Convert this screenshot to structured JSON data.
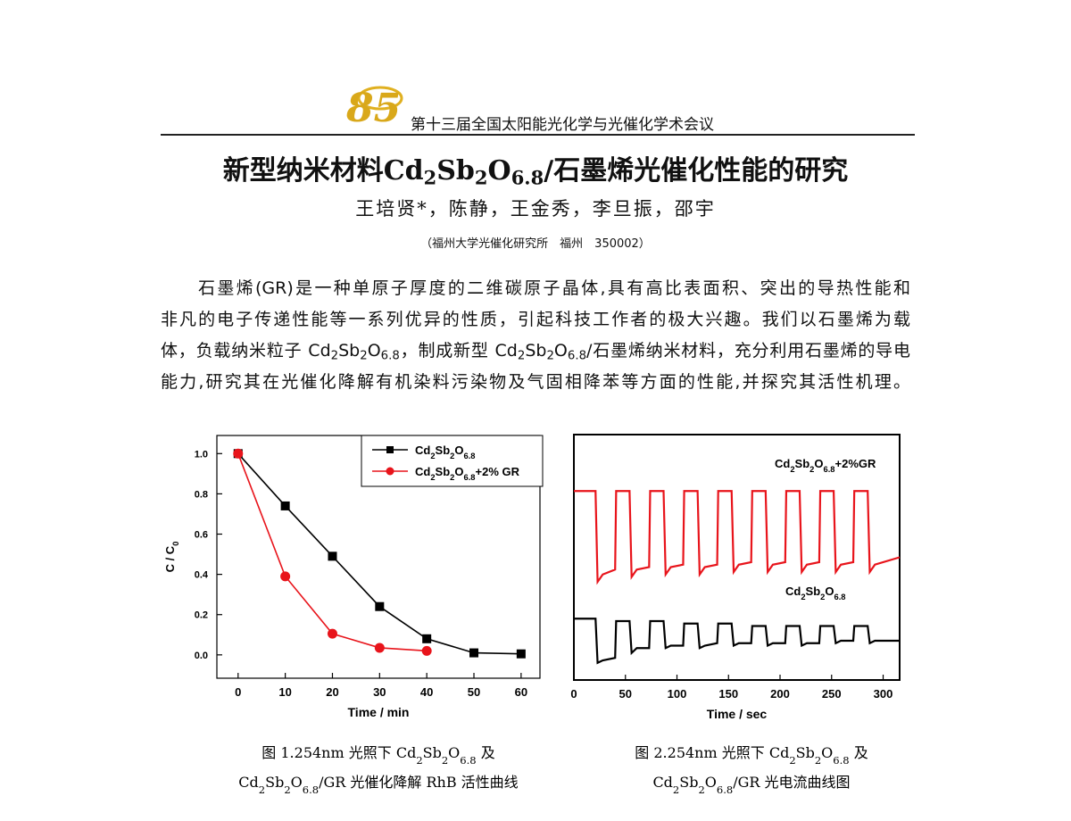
{
  "header": {
    "logo": "85",
    "conference": "第十三届全国太阳能光化学与光催化学术会议"
  },
  "title": "新型纳米材料Cd2Sb2O6.8/石墨烯光催化性能的研究",
  "authors": "王培贤*，陈静，王金秀，李旦振，邵宇",
  "affiliation": "（福州大学光催化研究所　福州　350002）",
  "abstract": {
    "lines": [
      "石墨烯(GR)是一种单原子厚度的二维碳原子晶体,具有高比表面积、突出的导热性能和",
      "非凡的电子传递性能等一系列优异的性质，引起科技工作者的极大兴趣。我们以石墨烯为载",
      "体，负载纳米粒子 Cd2Sb2O6.8，制成新型 Cd2Sb2O6.8/石墨烯纳米材料，充分利用石墨烯的导电",
      "能力,研究其在光催化降解有机染料污染物及气固相降苯等方面的性能,并探究其活性机理。"
    ]
  },
  "chart_data": [
    {
      "type": "line",
      "x_label": "Time / min",
      "y_label": "C / C0",
      "xlim": [
        -4.5,
        64
      ],
      "xticks": [
        0,
        10,
        20,
        30,
        40,
        50,
        60
      ],
      "ylim": [
        -0.116,
        1.09
      ],
      "yticks": [
        {
          "value": 0,
          "label": "0.0"
        },
        0.2,
        0.4,
        0.6,
        0.8,
        {
          "value": 1,
          "label": "1.0"
        }
      ],
      "legend": "upper right",
      "series": [
        {
          "name": "Cd2Sb2O6.8",
          "color": "#000000",
          "marker": "square",
          "x": [
            0,
            10,
            20,
            30,
            40,
            50,
            60
          ],
          "values": [
            1.0,
            0.74,
            0.49,
            0.24,
            0.08,
            0.01,
            0.005
          ]
        },
        {
          "name": "Cd2Sb2O6.8+2% GR",
          "color": "#e8141b",
          "marker": "circle",
          "x": [
            0,
            10,
            20,
            30,
            40
          ],
          "values": [
            1.0,
            0.39,
            0.105,
            0.035,
            0.02
          ]
        }
      ],
      "caption": [
        "图 1.254nm 光照下 Cd2Sb2O6.8 及",
        "Cd2Sb2O6.8/GR 光催化降解 RhB 活性曲线"
      ]
    },
    {
      "type": "line",
      "x_label": "Time / sec",
      "xlim": [
        0,
        316
      ],
      "xticks": [
        0,
        50,
        100,
        150,
        200,
        250,
        300
      ],
      "ylim": [
        0,
        1
      ],
      "series": [
        {
          "name": "Cd2Sb2O6.8+2%GR",
          "color": "#e8141b",
          "x": [
            0,
            21,
            23,
            28,
            40,
            41,
            54,
            56,
            61,
            73,
            74,
            87,
            89,
            94,
            106,
            107,
            120,
            122,
            127,
            139,
            140,
            153,
            155,
            160,
            172,
            173,
            186,
            188,
            193,
            205,
            206,
            219,
            221,
            226,
            238,
            239,
            252,
            254,
            259,
            271,
            272,
            285,
            287,
            292,
            316
          ],
          "values": [
            0.77,
            0.77,
            0.4,
            0.43,
            0.45,
            0.77,
            0.77,
            0.42,
            0.45,
            0.46,
            0.77,
            0.77,
            0.43,
            0.46,
            0.47,
            0.77,
            0.77,
            0.43,
            0.46,
            0.47,
            0.77,
            0.77,
            0.44,
            0.47,
            0.48,
            0.77,
            0.77,
            0.44,
            0.47,
            0.48,
            0.77,
            0.77,
            0.44,
            0.47,
            0.48,
            0.77,
            0.77,
            0.44,
            0.47,
            0.48,
            0.77,
            0.77,
            0.44,
            0.47,
            0.5
          ]
        },
        {
          "name": "Cd2Sb2O6.8",
          "color": "#000000",
          "x": [
            0,
            21,
            23,
            28,
            40,
            41,
            54,
            56,
            61,
            73,
            74,
            87,
            89,
            94,
            106,
            107,
            120,
            122,
            127,
            139,
            140,
            153,
            155,
            160,
            172,
            173,
            186,
            188,
            193,
            205,
            206,
            219,
            221,
            226,
            238,
            239,
            252,
            254,
            259,
            271,
            272,
            285,
            287,
            292,
            316
          ],
          "values": [
            0.25,
            0.25,
            0.07,
            0.08,
            0.09,
            0.24,
            0.24,
            0.11,
            0.13,
            0.13,
            0.24,
            0.24,
            0.13,
            0.14,
            0.14,
            0.23,
            0.23,
            0.13,
            0.14,
            0.15,
            0.23,
            0.23,
            0.14,
            0.15,
            0.15,
            0.22,
            0.22,
            0.14,
            0.15,
            0.15,
            0.22,
            0.22,
            0.14,
            0.15,
            0.15,
            0.22,
            0.22,
            0.15,
            0.16,
            0.16,
            0.22,
            0.22,
            0.15,
            0.16,
            0.16
          ]
        }
      ],
      "caption": [
        "图 2.254nm 光照下 Cd2Sb2O6.8 及",
        "Cd2Sb2O6.8/GR 光电流曲线图"
      ]
    }
  ]
}
